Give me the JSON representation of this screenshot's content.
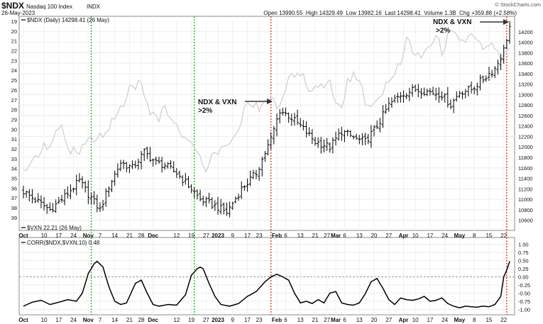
{
  "header": {
    "ticker": "$NDX",
    "name": "Nasdaq 100 Index",
    "exchange": "INDX",
    "date": "26-May-2023",
    "watermark": "© StockCharts.com",
    "stats": "Open 13990.55  High 14329.49  Low 13982.16  Last 14298.41  Volume 1.3B  Chg +359.88 (+2.58%)"
  },
  "legend": {
    "main": "$NDX (Daily) 14298.41 (26 May)",
    "vxn": "$VXN 22.21 (26 May)",
    "corr": "CORR($NDX,$VXN,10) 0.48"
  },
  "annotations": [
    {
      "line1": "NDX & VXN",
      "line2": ">2%",
      "date_index": 84
    },
    {
      "line1": "NDX & VXN",
      "line2": ">2%",
      "date_index": 164
    }
  ],
  "chart_data": [
    {
      "type": "line",
      "title": "Nasdaq 100 Index ($NDX) daily OHLC with $VXN overlay",
      "x_start": "2022-09-29",
      "x_end": "2023-05-26",
      "x_ticks": [
        {
          "label": "Oct",
          "i": 0,
          "bold": true
        },
        {
          "label": "10",
          "i": 7
        },
        {
          "label": "17",
          "i": 12
        },
        {
          "label": "24",
          "i": 17
        },
        {
          "label": "Nov",
          "i": 22,
          "bold": true
        },
        {
          "label": "7",
          "i": 26
        },
        {
          "label": "14",
          "i": 31
        },
        {
          "label": "21",
          "i": 36
        },
        {
          "label": "28",
          "i": 40
        },
        {
          "label": "Dec",
          "i": 44,
          "bold": true
        },
        {
          "label": "12",
          "i": 52
        },
        {
          "label": "19",
          "i": 57
        },
        {
          "label": "27",
          "i": 62
        },
        {
          "label": "2023",
          "i": 66,
          "bold": true
        },
        {
          "label": "9",
          "i": 71
        },
        {
          "label": "17",
          "i": 76
        },
        {
          "label": "23",
          "i": 80
        },
        {
          "label": "Feb",
          "i": 86,
          "bold": true
        },
        {
          "label": "6",
          "i": 89
        },
        {
          "label": "13",
          "i": 94
        },
        {
          "label": "21",
          "i": 99
        },
        {
          "label": "27",
          "i": 103
        },
        {
          "label": "Mar",
          "i": 106,
          "bold": true
        },
        {
          "label": "6",
          "i": 109
        },
        {
          "label": "13",
          "i": 114
        },
        {
          "label": "20",
          "i": 119
        },
        {
          "label": "27",
          "i": 124
        },
        {
          "label": "Apr",
          "i": 129,
          "bold": true
        },
        {
          "label": "10",
          "i": 133
        },
        {
          "label": "17",
          "i": 138
        },
        {
          "label": "24",
          "i": 143
        },
        {
          "label": "May",
          "i": 148,
          "bold": true
        },
        {
          "label": "8",
          "i": 153
        },
        {
          "label": "15",
          "i": 158
        },
        {
          "label": "22",
          "i": 163
        }
      ],
      "n_points": 166,
      "ndx_axis": {
        "ticks": [
          10600,
          10800,
          11000,
          11200,
          11400,
          11600,
          11800,
          12000,
          12200,
          12400,
          12600,
          12800,
          13000,
          13200,
          13400,
          13600,
          13800,
          14000,
          14200
        ],
        "range": [
          10500,
          14400
        ]
      },
      "vxn_axis": {
        "ticks": [
          19,
          20,
          21,
          22,
          23,
          24,
          25,
          26,
          27,
          28,
          29,
          30,
          31,
          32,
          33,
          34,
          35,
          36,
          37,
          38,
          39
        ],
        "range": [
          19,
          39.8
        ],
        "inverted": true
      },
      "ndx_close_keypoints": [
        [
          0,
          11150
        ],
        [
          5,
          10950
        ],
        [
          9,
          10800
        ],
        [
          13,
          11000
        ],
        [
          19,
          11350
        ],
        [
          22,
          11100
        ],
        [
          26,
          10800
        ],
        [
          29,
          11250
        ],
        [
          33,
          11700
        ],
        [
          37,
          11600
        ],
        [
          41,
          11900
        ],
        [
          45,
          11700
        ],
        [
          48,
          11650
        ],
        [
          52,
          11500
        ],
        [
          57,
          11200
        ],
        [
          60,
          11000
        ],
        [
          66,
          10850
        ],
        [
          69,
          10750
        ],
        [
          74,
          11200
        ],
        [
          79,
          11500
        ],
        [
          84,
          12150
        ],
        [
          87,
          12700
        ],
        [
          90,
          12600
        ],
        [
          94,
          12400
        ],
        [
          99,
          12100
        ],
        [
          104,
          12000
        ],
        [
          108,
          12300
        ],
        [
          113,
          12150
        ],
        [
          116,
          12100
        ],
        [
          120,
          12400
        ],
        [
          124,
          12800
        ],
        [
          128,
          13000
        ],
        [
          133,
          13100
        ],
        [
          138,
          13050
        ],
        [
          142,
          13000
        ],
        [
          145,
          12800
        ],
        [
          148,
          13050
        ],
        [
          152,
          13100
        ],
        [
          157,
          13350
        ],
        [
          160,
          13500
        ],
        [
          163,
          13850
        ],
        [
          165,
          14298
        ]
      ],
      "vxn_keypoints": [
        [
          0,
          34
        ],
        [
          13,
          30
        ],
        [
          16,
          32
        ],
        [
          20,
          32
        ],
        [
          22,
          31
        ],
        [
          24,
          31.5
        ],
        [
          33,
          28
        ],
        [
          36,
          26
        ],
        [
          38,
          26
        ],
        [
          40,
          25
        ],
        [
          42,
          27.5
        ],
        [
          45,
          29
        ],
        [
          48,
          28
        ],
        [
          52,
          29.5
        ],
        [
          55,
          31
        ],
        [
          58,
          32
        ],
        [
          62,
          34
        ],
        [
          66,
          32
        ],
        [
          72,
          30.5
        ],
        [
          76,
          27
        ],
        [
          80,
          28
        ],
        [
          84,
          26.5
        ],
        [
          87,
          28
        ],
        [
          90,
          25
        ],
        [
          94,
          24
        ],
        [
          97,
          26
        ],
        [
          100,
          25.5
        ],
        [
          104,
          25.5
        ],
        [
          108,
          28
        ],
        [
          110,
          25
        ],
        [
          113,
          24.5
        ],
        [
          116,
          27
        ],
        [
          120,
          27.5
        ],
        [
          124,
          25
        ],
        [
          128,
          23
        ],
        [
          130,
          20.5
        ],
        [
          133,
          22.5
        ],
        [
          136,
          22
        ],
        [
          140,
          20.5
        ],
        [
          142,
          22
        ],
        [
          145,
          20
        ],
        [
          148,
          20.5
        ],
        [
          150,
          21
        ],
        [
          153,
          20.5
        ],
        [
          156,
          22
        ],
        [
          159,
          21.5
        ],
        [
          162,
          23
        ],
        [
          165,
          22.21
        ]
      ],
      "markers": {
        "green_dotted": [
          23,
          58
        ],
        "red_dotted": [
          84,
          164
        ]
      }
    },
    {
      "type": "line",
      "title": "CORR($NDX,$VXN,10)",
      "y_ticks": [
        1.0,
        0.75,
        0.5,
        0.25,
        0.0,
        -0.25,
        -0.5,
        -0.75,
        -1.0
      ],
      "y_tick_labels": [
        "1.00",
        "0.75",
        "0.50",
        "0.25",
        "0.00",
        "-0.25",
        "-0.50",
        "-0.75",
        "-1.00"
      ],
      "ylim": [
        -1.1,
        1.1
      ],
      "last_value": 0.48,
      "keypoints": [
        [
          0,
          -0.9
        ],
        [
          3,
          -0.78
        ],
        [
          6,
          -0.72
        ],
        [
          9,
          -0.85
        ],
        [
          12,
          -0.78
        ],
        [
          15,
          -0.7
        ],
        [
          18,
          -0.75
        ],
        [
          20,
          -0.5
        ],
        [
          22,
          0.1
        ],
        [
          24,
          0.4
        ],
        [
          25,
          0.48
        ],
        [
          27,
          0.3
        ],
        [
          29,
          -0.3
        ],
        [
          31,
          -0.75
        ],
        [
          33,
          -0.85
        ],
        [
          35,
          -0.8
        ],
        [
          36,
          -0.6
        ],
        [
          38,
          -0.2
        ],
        [
          40,
          -0.1
        ],
        [
          42,
          -0.5
        ],
        [
          44,
          -0.85
        ],
        [
          46,
          -0.9
        ],
        [
          49,
          -0.85
        ],
        [
          52,
          -0.87
        ],
        [
          55,
          -0.55
        ],
        [
          57,
          0.05
        ],
        [
          59,
          0.25
        ],
        [
          60,
          0.3
        ],
        [
          61,
          0.25
        ],
        [
          63,
          -0.2
        ],
        [
          65,
          -0.6
        ],
        [
          67,
          -0.85
        ],
        [
          70,
          -0.9
        ],
        [
          73,
          -0.82
        ],
        [
          76,
          -0.6
        ],
        [
          79,
          -0.45
        ],
        [
          82,
          -0.15
        ],
        [
          84,
          0.0
        ],
        [
          86,
          0.08
        ],
        [
          88,
          0.0
        ],
        [
          90,
          -0.1
        ],
        [
          92,
          -0.5
        ],
        [
          94,
          -0.8
        ],
        [
          96,
          -0.75
        ],
        [
          98,
          -0.82
        ],
        [
          100,
          -0.7
        ],
        [
          102,
          -0.8
        ],
        [
          104,
          -0.5
        ],
        [
          106,
          -0.45
        ],
        [
          108,
          -0.8
        ],
        [
          110,
          -0.85
        ],
        [
          112,
          -0.87
        ],
        [
          114,
          -0.8
        ],
        [
          116,
          -0.52
        ],
        [
          118,
          -0.15
        ],
        [
          120,
          -0.05
        ],
        [
          122,
          -0.35
        ],
        [
          124,
          -0.7
        ],
        [
          126,
          -0.85
        ],
        [
          128,
          -0.65
        ],
        [
          130,
          -0.7
        ],
        [
          132,
          -0.72
        ],
        [
          134,
          -0.68
        ],
        [
          136,
          -0.6
        ],
        [
          138,
          -0.75
        ],
        [
          140,
          -0.72
        ],
        [
          142,
          -0.65
        ],
        [
          144,
          -0.82
        ],
        [
          146,
          -0.9
        ],
        [
          148,
          -0.95
        ],
        [
          150,
          -0.9
        ],
        [
          152,
          -0.92
        ],
        [
          154,
          -0.93
        ],
        [
          156,
          -0.9
        ],
        [
          158,
          -0.92
        ],
        [
          160,
          -0.85
        ],
        [
          162,
          -0.6
        ],
        [
          163,
          0.0
        ],
        [
          164,
          0.2
        ],
        [
          165,
          0.48
        ]
      ]
    }
  ]
}
